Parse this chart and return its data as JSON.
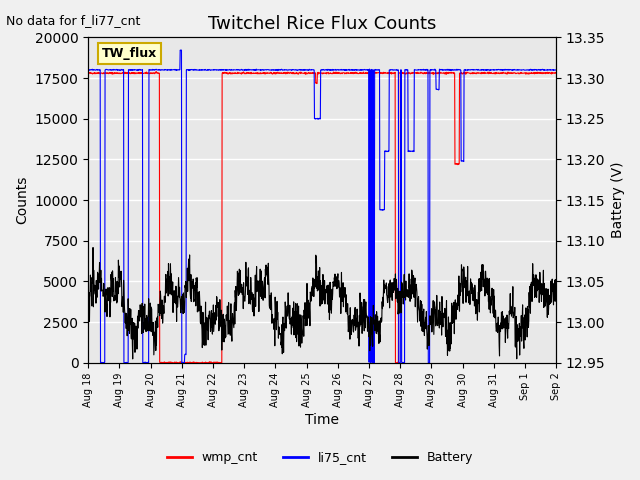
{
  "title": "Twitchel Rice Flux Counts",
  "no_data_label": "No data for f_li77_cnt",
  "tw_flux_label": "TW_flux",
  "xlabel": "Time",
  "ylabel_left": "Counts",
  "ylabel_right": "Battery (V)",
  "ylim_left": [
    0,
    20000
  ],
  "ylim_right": [
    12.95,
    13.35
  ],
  "bg_color": "#e8e8e8",
  "grid_color": "white",
  "legend_entries": [
    "wmp_cnt",
    "li75_cnt",
    "Battery"
  ],
  "legend_colors": [
    "red",
    "blue",
    "black"
  ],
  "x_tick_labels": [
    "Aug 18",
    "Aug 19",
    "Aug 20",
    "Aug 21",
    "Aug 22",
    "Aug 23",
    "Aug 24",
    "Aug 25",
    "Aug 26",
    "Aug 27",
    "Aug 28",
    "Aug 29",
    "Aug 30",
    "Aug 31",
    "Sep 1",
    "Sep 2"
  ],
  "tw_flux_box_color": "#ffffcc",
  "tw_flux_box_edge": "#ccaa00",
  "fig_bg_color": "#f0f0f0"
}
